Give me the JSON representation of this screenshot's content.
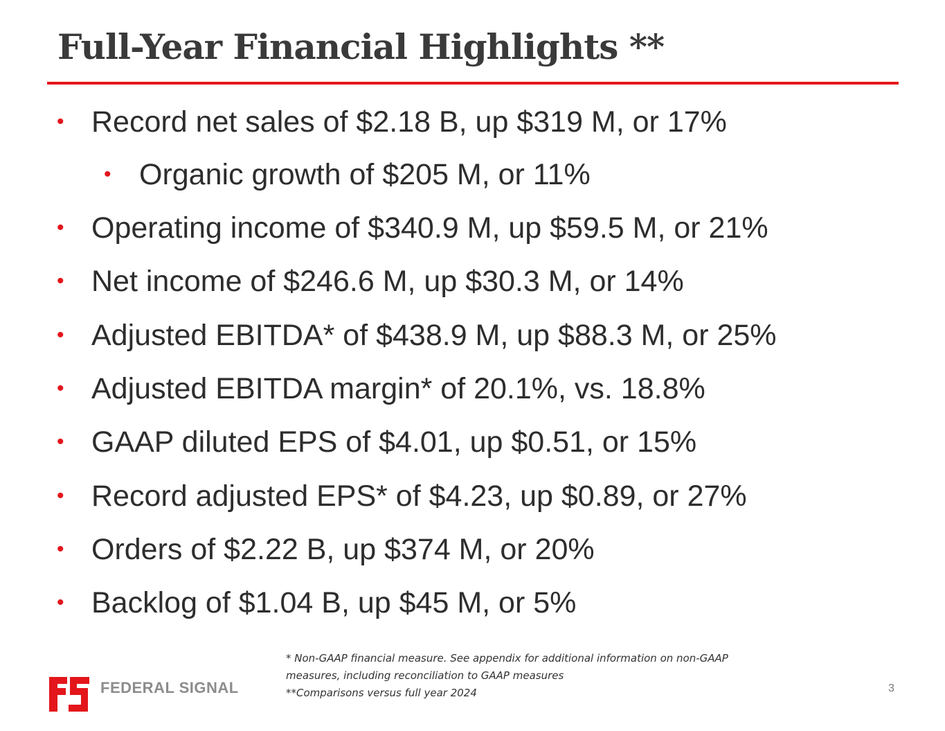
{
  "title": "Full-Year Financial Highlights **",
  "bullets": [
    {
      "text": "Record net sales of $2.18 B, up $319 M, or 17%",
      "level": 1
    },
    {
      "text": "Organic growth of $205 M, or 11%",
      "level": 2
    },
    {
      "text": "Operating income of $340.9 M, up $59.5 M, or 21%",
      "level": 1
    },
    {
      "text": "Net income of $246.6 M, up $30.3 M, or 14%",
      "level": 1
    },
    {
      "text": "Adjusted EBITDA* of $438.9 M, up $88.3 M, or 25%",
      "level": 1
    },
    {
      "text": "Adjusted EBITDA margin* of 20.1%, vs. 18.8%",
      "level": 1
    },
    {
      "text": "GAAP diluted EPS of $4.01, up $0.51, or 15%",
      "level": 1
    },
    {
      "text": "Record adjusted EPS* of $4.23, up $0.89, or 27%",
      "level": 1
    },
    {
      "text": "Orders of $2.22 B, up $374 M, or 20%",
      "level": 1
    },
    {
      "text": "Backlog of $1.04 B, up $45 M, or 5%",
      "level": 1
    }
  ],
  "bullet_symbol": "•",
  "footnote": {
    "line1": "* Non-GAAP financial measure. See appendix for additional information on non-GAAP",
    "line2": "measures, including reconciliation to GAAP measures",
    "line3": "**Comparisons versus full year 2024"
  },
  "page_number": "3",
  "logo": {
    "text": "FEDERAL SIGNAL",
    "icon": "federal-signal-logo-icon"
  },
  "colors": {
    "accent": "#e3161b",
    "text": "#2d2d2d",
    "title": "#3a3a3a",
    "logo_gray": "#8c8c8c"
  }
}
